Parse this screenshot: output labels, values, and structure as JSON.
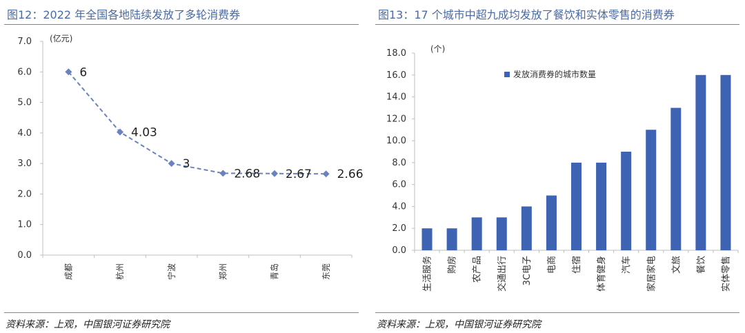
{
  "left": {
    "title": "图12：2022 年全国各地陆续发放了多轮消费券",
    "source": "资料来源：上观，中国银河证券研究院"
  },
  "right": {
    "title": "图13：17 个城市中超九成均发放了餐饮和实体零售的消费券",
    "source": "资料来源：上观，中国银河证券研究院"
  },
  "colors": {
    "title": "#4a6aa5",
    "line": "#6a82bd",
    "bar": "#3f63b3",
    "axis": "#bfbfbf"
  },
  "chart_data": [
    {
      "type": "line",
      "title": "2022 年全国各地陆续发放了多轮消费券",
      "ylabel": "(亿元)",
      "ylim": [
        0,
        7
      ],
      "yticks": [
        "0.0",
        "1.0",
        "2.0",
        "3.0",
        "4.0",
        "5.0",
        "6.0",
        "7.0"
      ],
      "categories": [
        "成都",
        "杭州",
        "宁波",
        "郑州",
        "青岛",
        "东莞"
      ],
      "values": [
        6,
        4.03,
        3,
        2.68,
        2.67,
        2.66
      ],
      "value_labels": [
        "6",
        "4.03",
        "3",
        "2.68",
        "2.67",
        "2.66"
      ]
    },
    {
      "type": "bar",
      "title": "17 个城市中超九成均发放了餐饮和实体零售的消费券",
      "ylabel": "(个)",
      "ylim": [
        0,
        18
      ],
      "yticks": [
        "0.0",
        "2.0",
        "4.0",
        "6.0",
        "8.0",
        "10.0",
        "12.0",
        "14.0",
        "16.0",
        "18.0"
      ],
      "legend": "发放消费券的城市数量",
      "categories": [
        "生活服务",
        "购房",
        "农产品",
        "交通出行",
        "3C电子",
        "电商",
        "住宿",
        "体育健身",
        "汽车",
        "家居家电",
        "文旅",
        "餐饮",
        "实体零售"
      ],
      "values": [
        2,
        2,
        3,
        3,
        4,
        5,
        8,
        8,
        9,
        11,
        13,
        16,
        16
      ]
    }
  ]
}
